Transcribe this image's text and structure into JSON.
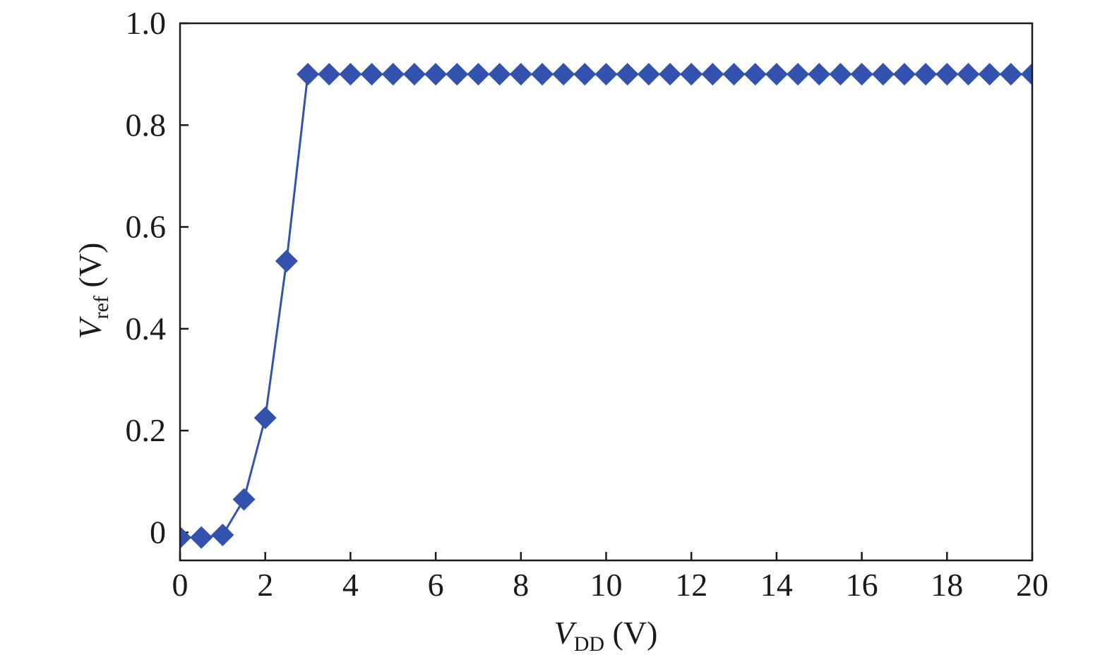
{
  "chart_data": {
    "type": "line",
    "title": "",
    "xlabel": {
      "main": "V",
      "sub": "DD",
      "unit": " (V)"
    },
    "ylabel": {
      "main": "V",
      "sub": "ref",
      "unit": " (V)"
    },
    "xlim": [
      0,
      20
    ],
    "ylim": [
      -0.055,
      1.0
    ],
    "xticks": [
      0,
      2,
      4,
      6,
      8,
      10,
      12,
      14,
      16,
      18,
      20
    ],
    "xtick_labels": [
      "0",
      "2",
      "4",
      "6",
      "8",
      "10",
      "12",
      "14",
      "16",
      "18",
      "20"
    ],
    "yticks": [
      0,
      0.2,
      0.4,
      0.6,
      0.8,
      1.0
    ],
    "ytick_labels": [
      "0",
      "0.2",
      "0.4",
      "0.6",
      "0.8",
      "1.0"
    ],
    "grid": false,
    "legend": false,
    "colors": {
      "series": "#3352AE",
      "axis": "#1a1a1a"
    },
    "marker": "diamond",
    "series": [
      {
        "x": [
          0,
          0.5,
          1,
          1.5,
          2,
          2.5,
          3,
          3.5,
          4,
          4.5,
          5,
          5.5,
          6,
          6.5,
          7,
          7.5,
          8,
          8.5,
          9,
          9.5,
          10,
          10.5,
          11,
          11.5,
          12,
          12.5,
          13,
          13.5,
          14,
          14.5,
          15,
          15.5,
          16,
          16.5,
          17,
          17.5,
          18,
          18.5,
          19,
          19.5,
          20
        ],
        "y": [
          -0.01,
          -0.01,
          -0.005,
          0.065,
          0.225,
          0.533,
          0.9,
          0.9,
          0.9,
          0.9,
          0.9,
          0.9,
          0.9,
          0.9,
          0.9,
          0.9,
          0.9,
          0.9,
          0.9,
          0.9,
          0.9,
          0.9,
          0.9,
          0.9,
          0.9,
          0.9,
          0.9,
          0.9,
          0.9,
          0.9,
          0.9,
          0.9,
          0.9,
          0.9,
          0.9,
          0.9,
          0.9,
          0.9,
          0.9,
          0.9,
          0.9
        ]
      }
    ]
  }
}
